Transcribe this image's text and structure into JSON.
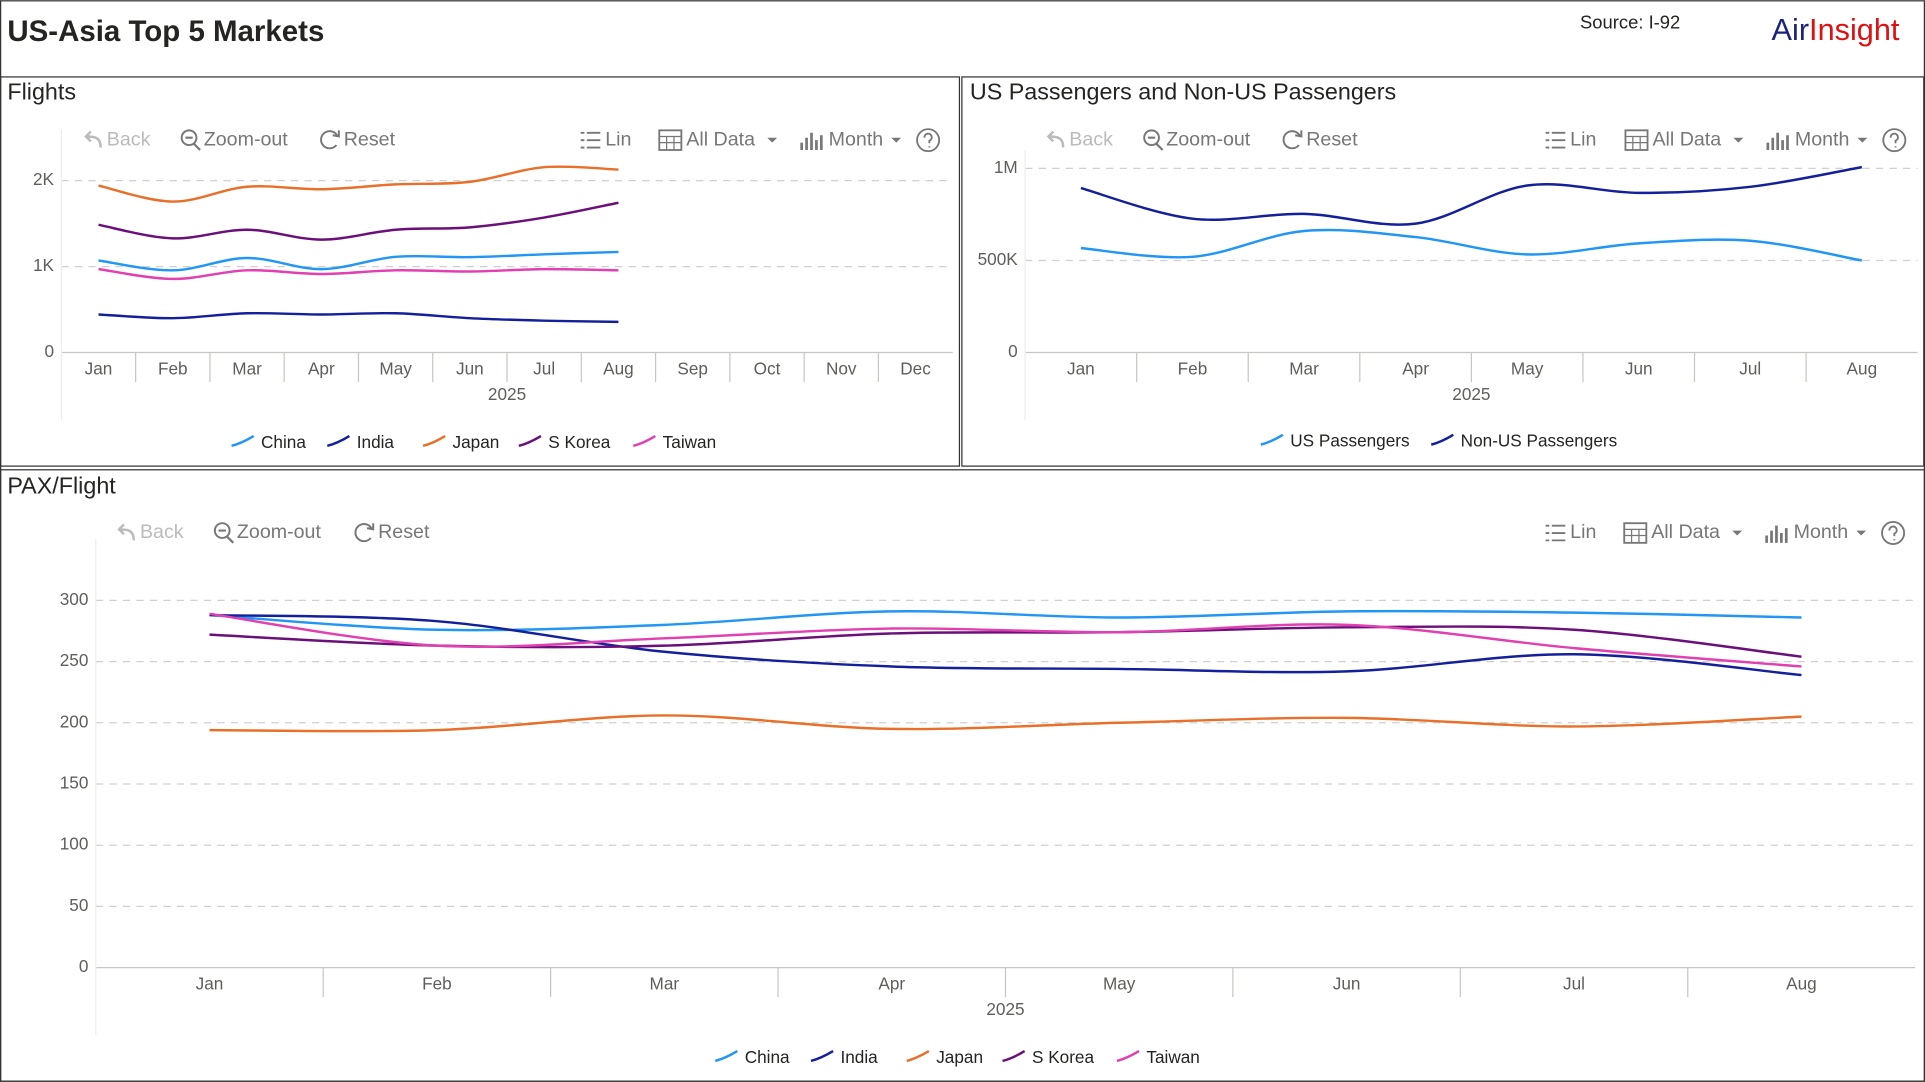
{
  "header": {
    "title": "US-Asia Top 5 Markets",
    "source": "Source: I-92",
    "logo": [
      "Air",
      "Insight"
    ]
  },
  "toolbar": {
    "back": "Back",
    "zoom_out": "Zoom-out",
    "reset": "Reset",
    "scale": "Lin",
    "range": "All Data",
    "period": "Month"
  },
  "chart_data": [
    {
      "type": "line",
      "title": "Flights",
      "x_label": "2025",
      "categories": [
        "Jan",
        "Feb",
        "Mar",
        "Apr",
        "May",
        "Jun",
        "Jul",
        "Aug",
        "Sep",
        "Oct",
        "Nov",
        "Dec"
      ],
      "ylim": [
        0,
        2600
      ],
      "yticks": [
        0,
        {
          "value": 1000,
          "label": "1K"
        },
        {
          "value": 2000,
          "label": "2K"
        }
      ],
      "grid": true,
      "series": [
        {
          "name": "China",
          "color": "#2196f3",
          "values": [
            1071,
            957,
            1100,
            971,
            1114,
            1110,
            1143,
            1171,
            null,
            null,
            null,
            null
          ]
        },
        {
          "name": "India",
          "color": "#14209a",
          "values": [
            443,
            400,
            457,
            443,
            457,
            400,
            371,
            357,
            null,
            null,
            null,
            null
          ]
        },
        {
          "name": "Japan",
          "color": "#e8702a",
          "values": [
            1943,
            1757,
            1929,
            1900,
            1957,
            1986,
            2157,
            2129,
            null,
            null,
            null,
            null
          ]
        },
        {
          "name": "S Korea",
          "color": "#6b0f7a",
          "values": [
            1486,
            1329,
            1429,
            1314,
            1429,
            1457,
            1571,
            1743,
            null,
            null,
            null,
            null
          ]
        },
        {
          "name": "Taiwan",
          "color": "#e040b0",
          "values": [
            971,
            857,
            957,
            914,
            957,
            943,
            971,
            957,
            null,
            null,
            null,
            null
          ]
        }
      ]
    },
    {
      "type": "line",
      "title": "US Passengers and Non-US Passengers",
      "x_label": "2025",
      "categories": [
        "Jan",
        "Feb",
        "Mar",
        "Apr",
        "May",
        "Jun",
        "Jul",
        "Aug"
      ],
      "ylim": [
        0,
        1100000
      ],
      "yticks": [
        0,
        {
          "value": 500000,
          "label": "500K"
        },
        {
          "value": 1000000,
          "label": "1M"
        }
      ],
      "grid": true,
      "series": [
        {
          "name": "US Passengers",
          "color": "#2196f3",
          "values": [
            567000,
            520000,
            660000,
            627000,
            533000,
            593000,
            607000,
            500000
          ]
        },
        {
          "name": "Non-US Passengers",
          "color": "#14209a",
          "values": [
            893000,
            727000,
            753000,
            700000,
            907000,
            867000,
            900000,
            1007000
          ]
        }
      ]
    },
    {
      "type": "line",
      "title": "PAX/Flight",
      "x_label": "2025",
      "categories": [
        "Jan",
        "Feb",
        "Mar",
        "Apr",
        "May",
        "Jun",
        "Jul",
        "Aug"
      ],
      "ylim": [
        0,
        350
      ],
      "yticks": [
        0,
        50,
        100,
        150,
        200,
        250,
        300
      ],
      "grid": true,
      "series": [
        {
          "name": "China",
          "color": "#2196f3",
          "values": [
            288,
            276,
            280,
            291,
            286,
            291,
            290,
            286
          ]
        },
        {
          "name": "India",
          "color": "#14209a",
          "values": [
            288,
            283,
            258,
            246,
            244,
            242,
            256,
            239
          ]
        },
        {
          "name": "Japan",
          "color": "#e8702a",
          "values": [
            194,
            194,
            206,
            195,
            200,
            204,
            197,
            205
          ]
        },
        {
          "name": "S Korea",
          "color": "#6b0f7a",
          "values": [
            272,
            263,
            263,
            273,
            274,
            278,
            276,
            254
          ]
        },
        {
          "name": "Taiwan",
          "color": "#e040b0",
          "values": [
            289,
            263,
            269,
            277,
            274,
            280,
            261,
            246
          ]
        }
      ]
    }
  ]
}
